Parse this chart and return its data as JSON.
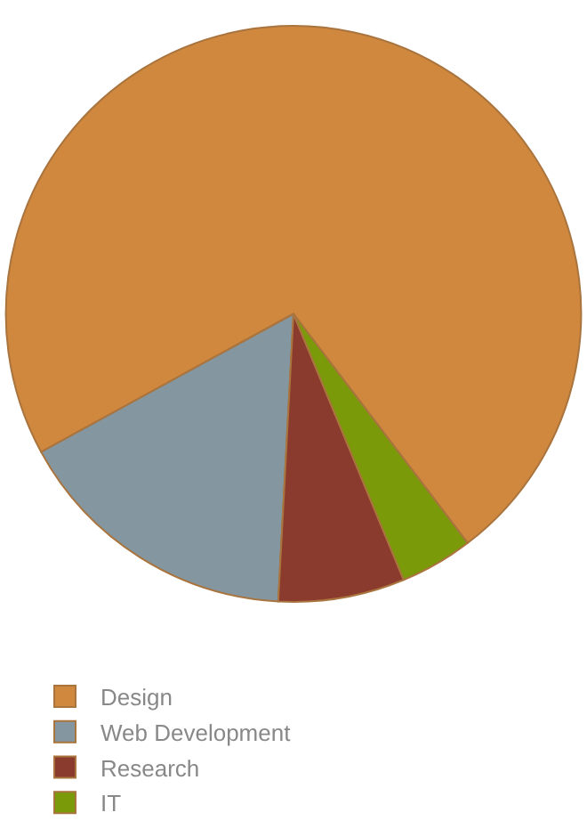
{
  "chart_data": {
    "type": "pie",
    "categories": [
      "Design",
      "Web Development",
      "Research",
      "IT"
    ],
    "values": [
      72.6,
      16.2,
      7.1,
      4.1
    ],
    "colors": [
      "#d0883f",
      "#8496a0",
      "#8b3a2e",
      "#7a9a0a"
    ],
    "legend": "bottom"
  }
}
